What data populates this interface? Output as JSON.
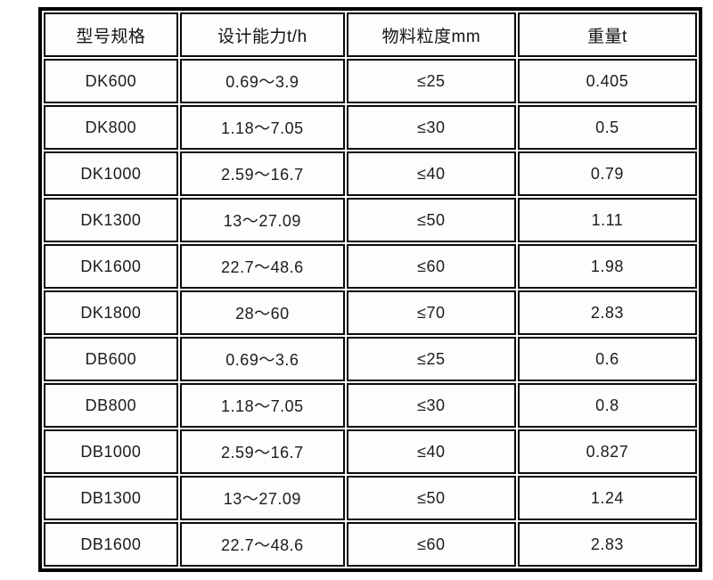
{
  "chart_data": {
    "type": "table",
    "title": "",
    "columns": [
      "型号规格",
      "设计能力t/h",
      "物料粒度mm",
      "重量t"
    ],
    "rows": [
      [
        "DK600",
        "0.69～3.9",
        "≤25",
        "0.405"
      ],
      [
        "DK800",
        "1.18～7.05",
        "≤30",
        "0.5"
      ],
      [
        "DK1000",
        "2.59～16.7",
        "≤40",
        "0.79"
      ],
      [
        "DK1300",
        "13～27.09",
        "≤50",
        "1.11"
      ],
      [
        "DK1600",
        "22.7～48.6",
        "≤60",
        "1.98"
      ],
      [
        "DK1800",
        "28～60",
        "≤70",
        "2.83"
      ],
      [
        "DB600",
        "0.69～3.6",
        "≤25",
        "0.6"
      ],
      [
        "DB800",
        "1.18～7.05",
        "≤30",
        "0.8"
      ],
      [
        "DB1000",
        "2.59～16.7",
        "≤40",
        "0.827"
      ],
      [
        "DB1300",
        "13～27.09",
        "≤50",
        "1.24"
      ],
      [
        "DB1600",
        "22.7～48.6",
        "≤60",
        "2.83"
      ]
    ],
    "layout": {
      "grid": true,
      "border_color": "#000000",
      "cell_background": "#fdfdfd",
      "text_color": "#1c1c1c",
      "page_background": "#ffffff"
    }
  },
  "table": {
    "headers": {
      "model": "型号规格",
      "capacity": "设计能力t/h",
      "particle": "物料粒度mm",
      "weight": "重量t"
    },
    "rows": [
      {
        "model": "DK600",
        "capacity": "0.69～3.9",
        "particle": "≤25",
        "weight": "0.405"
      },
      {
        "model": "DK800",
        "capacity": "1.18～7.05",
        "particle": "≤30",
        "weight": "0.5"
      },
      {
        "model": "DK1000",
        "capacity": "2.59～16.7",
        "particle": "≤40",
        "weight": "0.79"
      },
      {
        "model": "DK1300",
        "capacity": "13～27.09",
        "particle": "≤50",
        "weight": "1.11"
      },
      {
        "model": "DK1600",
        "capacity": "22.7～48.6",
        "particle": "≤60",
        "weight": "1.98"
      },
      {
        "model": "DK1800",
        "capacity": "28～60",
        "particle": "≤70",
        "weight": "2.83"
      },
      {
        "model": "DB600",
        "capacity": "0.69～3.6",
        "particle": "≤25",
        "weight": "0.6"
      },
      {
        "model": "DB800",
        "capacity": "1.18～7.05",
        "particle": "≤30",
        "weight": "0.8"
      },
      {
        "model": "DB1000",
        "capacity": "2.59～16.7",
        "particle": "≤40",
        "weight": "0.827"
      },
      {
        "model": "DB1300",
        "capacity": "13～27.09",
        "particle": "≤50",
        "weight": "1.24"
      },
      {
        "model": "DB1600",
        "capacity": "22.7～48.6",
        "particle": "≤60",
        "weight": "2.83"
      }
    ]
  }
}
